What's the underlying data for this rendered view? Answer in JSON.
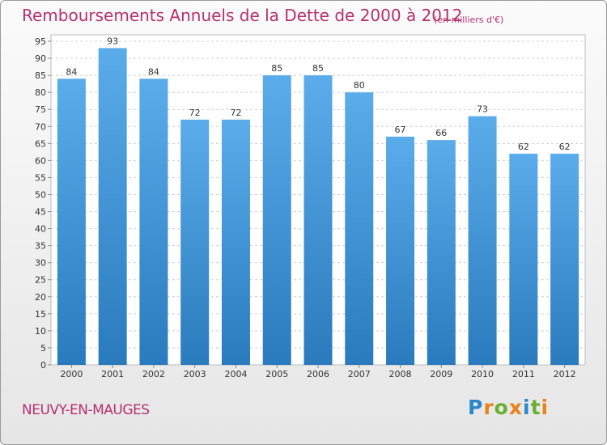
{
  "title": "Remboursements Annuels de la Dette de 2000 à 2012",
  "unit": "(en milliers d'€)",
  "commune": "NEUVY-EN-MAUGES",
  "logo": "Proxiti",
  "colors": {
    "title": "#b5306e",
    "bar_top": "#5aacea",
    "bar_bottom": "#2a7bbd",
    "logo_letters": [
      "#2a87c9",
      "#e8831b",
      "#6ab02e",
      "#e8831b",
      "#2a87c9",
      "#6ab02e",
      "#e8831b"
    ]
  },
  "chart_data": {
    "type": "bar",
    "categories": [
      "2000",
      "2001",
      "2002",
      "2003",
      "2004",
      "2005",
      "2006",
      "2007",
      "2008",
      "2009",
      "2010",
      "2011",
      "2012"
    ],
    "values": [
      84,
      93,
      84,
      72,
      72,
      85,
      85,
      80,
      67,
      66,
      73,
      62,
      62
    ],
    "yticks": [
      0,
      5,
      10,
      15,
      20,
      25,
      30,
      35,
      40,
      45,
      50,
      55,
      60,
      65,
      70,
      75,
      80,
      85,
      90,
      95
    ],
    "ylim": [
      0,
      95
    ],
    "grid": true,
    "data_labels": true
  }
}
